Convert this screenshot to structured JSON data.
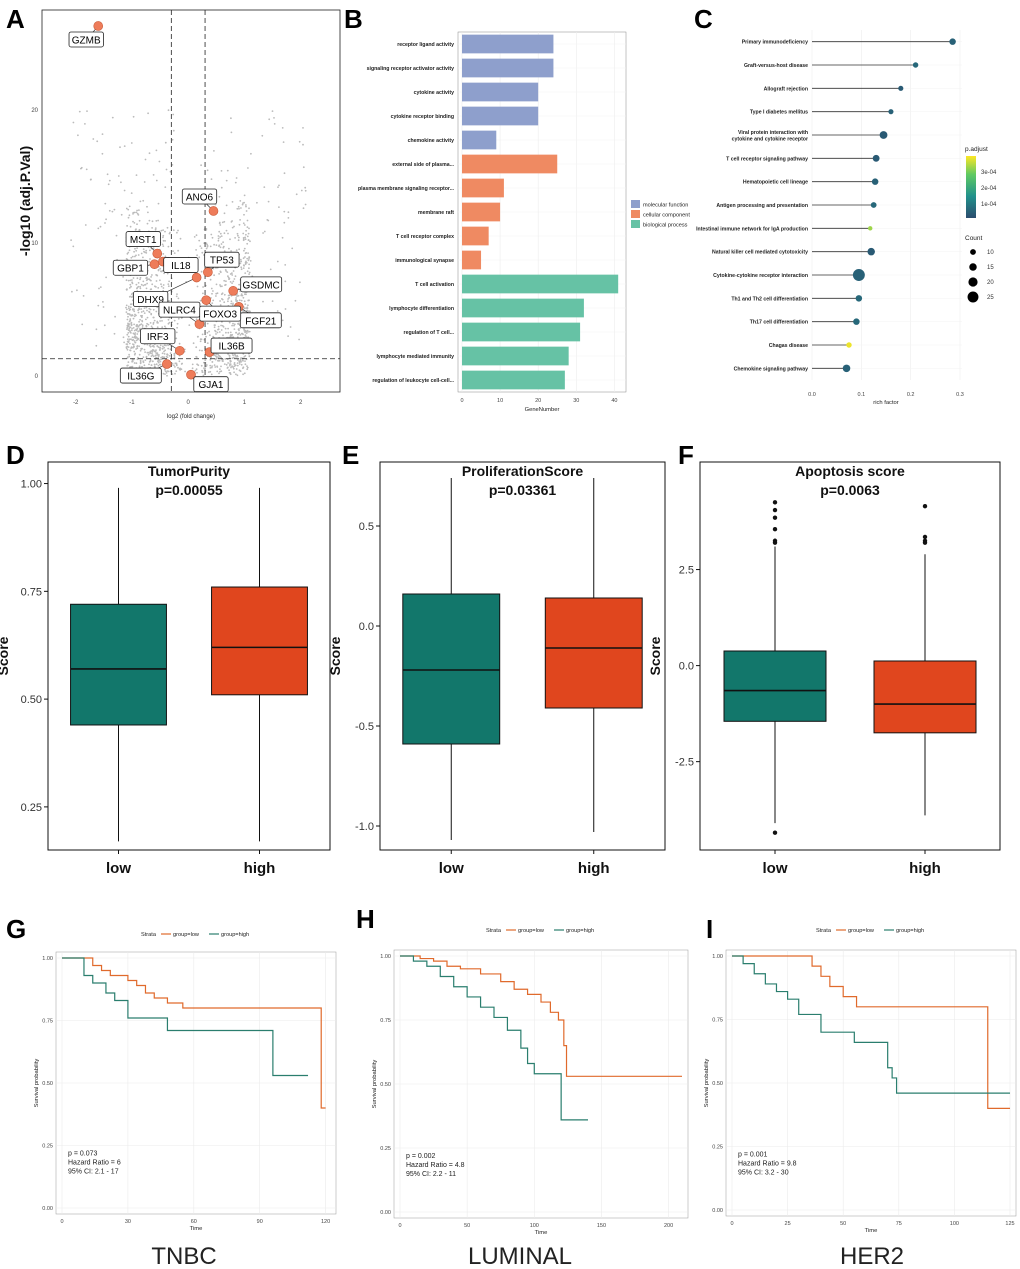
{
  "panel_letters": [
    "A",
    "B",
    "C",
    "D",
    "E",
    "F",
    "G",
    "H",
    "I"
  ],
  "colors": {
    "low": "#12776b",
    "high": "#e0461e",
    "km_low": "#e06a2c",
    "km_high": "#2a7e6e",
    "scatter": "#bbbbbb",
    "highlight": "#ee7c5a",
    "mf": "#8e9fcc",
    "cc": "#ef8a62",
    "bp": "#66c2a5"
  },
  "chart_data": [
    {
      "panel": "A",
      "type": "scatter",
      "title": "",
      "xlabel": "log2 (fold change)",
      "ylabel": "-log10 (adj.P.Val)",
      "xlim": [
        -2.6,
        2.7
      ],
      "ylim": [
        -1.2,
        27.5
      ],
      "xticks": [
        -2,
        -1,
        0,
        1,
        2
      ],
      "yticks": [
        0,
        10,
        20
      ],
      "thresholds": {
        "x": [
          -0.3,
          0.3
        ],
        "y": 1.3
      },
      "labeled_points": [
        {
          "label": "GZMB",
          "x": -1.6,
          "y": 26.3
        },
        {
          "label": "ANO6",
          "x": 0.45,
          "y": 12.4
        },
        {
          "label": "MST1",
          "x": -0.55,
          "y": 9.2
        },
        {
          "label": "GBP1",
          "x": -0.6,
          "y": 8.4
        },
        {
          "label": "IL18",
          "x": -0.45,
          "y": 8.6
        },
        {
          "label": "TP53",
          "x": 0.35,
          "y": 7.8
        },
        {
          "label": "DHX9",
          "x": 0.15,
          "y": 7.4
        },
        {
          "label": "GSDMC",
          "x": 0.8,
          "y": 6.4
        },
        {
          "label": "FGF21",
          "x": 0.9,
          "y": 5.2
        },
        {
          "label": "NLRC4",
          "x": 0.2,
          "y": 3.9
        },
        {
          "label": "FOXO3",
          "x": 0.32,
          "y": 5.7
        },
        {
          "label": "IRF3",
          "x": -0.15,
          "y": 1.9
        },
        {
          "label": "IL36B",
          "x": 0.38,
          "y": 1.8
        },
        {
          "label": "IL36G",
          "x": -0.38,
          "y": 0.9
        },
        {
          "label": "GJA1",
          "x": 0.05,
          "y": 0.1
        }
      ]
    },
    {
      "panel": "B",
      "type": "bar",
      "orientation": "horizontal",
      "xlabel": "GeneNumber",
      "ylabel": "",
      "xlim": [
        0,
        42
      ],
      "xticks": [
        0,
        10,
        20,
        30,
        40
      ],
      "categories": [
        "receptor ligand activity",
        "signaling receptor activator activity",
        "cytokine activity",
        "cytokine receptor binding",
        "chemokine activity",
        "external side of plasma...",
        "plasma membrane signaling receptor...",
        "membrane raft",
        "T cell receptor complex",
        "immunological synapse",
        "T cell activation",
        "lymphocyte differentiation",
        "regulation of T cell...",
        "lymphocyte mediated immunity",
        "regulation of leukocyte cell-cell..."
      ],
      "values": [
        24,
        24,
        20,
        20,
        9,
        25,
        11,
        10,
        7,
        5,
        41,
        32,
        31,
        28,
        27
      ],
      "groups": [
        "mf",
        "mf",
        "mf",
        "mf",
        "mf",
        "cc",
        "cc",
        "cc",
        "cc",
        "cc",
        "bp",
        "bp",
        "bp",
        "bp",
        "bp"
      ],
      "legend": [
        "molecular function",
        "cellular component",
        "biological process"
      ]
    },
    {
      "panel": "C",
      "type": "scatter",
      "subtype": "lollipop",
      "xlabel": "rich factor",
      "xlim": [
        0,
        0.3
      ],
      "xticks": [
        0.0,
        0.1,
        0.2,
        0.3
      ],
      "categories": [
        "Primary immunodeficiency",
        "Graft-versus-host disease",
        "Allograft rejection",
        "Type I diabetes mellitus",
        "Viral protein interaction with|cytokine and cytokine receptor",
        "T cell receptor signaling pathway",
        "Hematopoietic cell lineage",
        "Antigen processing and presentation",
        "Intestinal immune network for IgA production",
        "Natural killer cell mediated cytotoxicity",
        "Cytokine-cytokine receptor interaction",
        "Th1 and Th2 cell differentiation",
        "Th17 cell differentiation",
        "Chagas disease",
        "Chemokine signaling pathway"
      ],
      "values": [
        0.285,
        0.21,
        0.18,
        0.16,
        0.145,
        0.13,
        0.128,
        0.125,
        0.118,
        0.12,
        0.095,
        0.095,
        0.09,
        0.075,
        0.07
      ],
      "counts": [
        12,
        9,
        8,
        8,
        16,
        13,
        12,
        10,
        6,
        15,
        28,
        12,
        12,
        9,
        15
      ],
      "p_adjust": [
        9e-05,
        0.0001,
        8e-05,
        9e-05,
        8e-05,
        8e-05,
        9e-05,
        0.0001,
        0.0003,
        8e-05,
        9e-05,
        0.0001,
        0.0001,
        0.00035,
        9e-05
      ],
      "legend_p_title": "p.adjust",
      "legend_p_ticks": [
        "3e-04",
        "2e-04",
        "1e-04"
      ],
      "legend_count_title": "Count",
      "legend_count_ticks": [
        10,
        15,
        20,
        25
      ]
    },
    {
      "panel": "D",
      "type": "box",
      "title": "TumorPurity",
      "subtitle": "p=0.00055",
      "ylabel": "Score",
      "categories": [
        "low",
        "high"
      ],
      "ylim": [
        0.15,
        1.05
      ],
      "yticks": [
        "1.00",
        "0.75",
        "0.50",
        "0.25"
      ],
      "ytick_values": [
        1.0,
        0.75,
        0.5,
        0.25
      ],
      "boxes": [
        {
          "min": 0.17,
          "q1": 0.44,
          "median": 0.57,
          "q3": 0.72,
          "max": 0.99,
          "outliers": []
        },
        {
          "min": 0.17,
          "q1": 0.51,
          "median": 0.62,
          "q3": 0.76,
          "max": 0.99,
          "outliers": []
        }
      ]
    },
    {
      "panel": "E",
      "type": "box",
      "title": "ProliferationScore",
      "subtitle": "p=0.03361",
      "ylabel": "Score",
      "categories": [
        "low",
        "high"
      ],
      "ylim": [
        -1.12,
        0.82
      ],
      "yticks": [
        "0.5",
        "0.0",
        "-0.5",
        "-1.0"
      ],
      "ytick_values": [
        0.5,
        0.0,
        -0.5,
        -1.0
      ],
      "boxes": [
        {
          "min": -1.07,
          "q1": -0.59,
          "median": -0.22,
          "q3": 0.16,
          "max": 0.74,
          "outliers": []
        },
        {
          "min": -1.03,
          "q1": -0.41,
          "median": -0.11,
          "q3": 0.14,
          "max": 0.74,
          "outliers": []
        }
      ]
    },
    {
      "panel": "F",
      "type": "box",
      "title": "Apoptosis score",
      "subtitle": "p=0.0063",
      "ylabel": "Score",
      "categories": [
        "low",
        "high"
      ],
      "ylim": [
        -4.8,
        5.3
      ],
      "yticks": [
        "2.5",
        "0.0",
        "-2.5"
      ],
      "ytick_values": [
        2.5,
        0.0,
        -2.5
      ],
      "boxes": [
        {
          "min": -4.1,
          "q1": -1.45,
          "median": -0.65,
          "q3": 0.38,
          "max": 3.1,
          "outliers": [
            4.25,
            4.05,
            3.85,
            3.55,
            3.25,
            3.2,
            -4.35
          ]
        },
        {
          "min": -3.9,
          "q1": -1.75,
          "median": -1.0,
          "q3": 0.12,
          "max": 2.9,
          "outliers": [
            4.15,
            3.35,
            3.25,
            3.2
          ]
        }
      ]
    },
    {
      "panel": "G",
      "type": "line",
      "subtype": "kaplan-meier",
      "legend_title": "Strata",
      "legend": [
        "group=low",
        "group=high"
      ],
      "xlabel": "Time",
      "ylabel": "Survival probability",
      "xlim": [
        0,
        122
      ],
      "xticks": [
        0,
        30,
        60,
        90,
        120
      ],
      "ylim": [
        0,
        1
      ],
      "yticks": [
        "0.00",
        "0.25",
        "0.50",
        "0.75",
        "1.00"
      ],
      "ytick_values": [
        0,
        0.25,
        0.5,
        0.75,
        1.0
      ],
      "series": [
        {
          "name": "group=low",
          "x": [
            0,
            8,
            14,
            18,
            22,
            30,
            34,
            38,
            42,
            48,
            55,
            118,
            118,
            120
          ],
          "y": [
            1.0,
            1.0,
            0.97,
            0.95,
            0.93,
            0.91,
            0.89,
            0.86,
            0.84,
            0.82,
            0.8,
            0.8,
            0.4,
            0.4
          ]
        },
        {
          "name": "group=high",
          "x": [
            0,
            7,
            10,
            14,
            20,
            24,
            30,
            48,
            96,
            96,
            112
          ],
          "y": [
            1.0,
            1.0,
            0.93,
            0.9,
            0.86,
            0.83,
            0.76,
            0.71,
            0.71,
            0.53,
            0.53
          ]
        }
      ],
      "annotation": [
        "p = 0.073",
        "Hazard Ratio = 6",
        "95% CI: 2.1 - 17"
      ],
      "label": "TNBC"
    },
    {
      "panel": "H",
      "type": "line",
      "subtype": "kaplan-meier",
      "legend_title": "Strata",
      "legend": [
        "group=low",
        "group=high"
      ],
      "xlabel": "Time",
      "ylabel": "Survival probability",
      "xlim": [
        0,
        210
      ],
      "xticks": [
        0,
        50,
        100,
        150,
        200
      ],
      "ylim": [
        0,
        1
      ],
      "yticks": [
        "0.00",
        "0.25",
        "0.50",
        "0.75",
        "1.00"
      ],
      "ytick_values": [
        0,
        0.25,
        0.5,
        0.75,
        1.0
      ],
      "series": [
        {
          "name": "group=low",
          "x": [
            0,
            15,
            25,
            35,
            45,
            60,
            75,
            85,
            95,
            105,
            112,
            118,
            122,
            124,
            210
          ],
          "y": [
            1.0,
            0.99,
            0.98,
            0.96,
            0.95,
            0.93,
            0.9,
            0.87,
            0.85,
            0.82,
            0.78,
            0.75,
            0.65,
            0.53,
            0.53
          ]
        },
        {
          "name": "group=high",
          "x": [
            0,
            10,
            20,
            30,
            40,
            50,
            60,
            70,
            80,
            90,
            95,
            100,
            110,
            120,
            140
          ],
          "y": [
            1.0,
            0.98,
            0.96,
            0.92,
            0.88,
            0.84,
            0.8,
            0.76,
            0.71,
            0.64,
            0.58,
            0.54,
            0.54,
            0.36,
            0.36
          ]
        }
      ],
      "annotation": [
        "p = 0.002",
        "Hazard Ratio = 4.8",
        "95% CI: 2.2 - 11"
      ],
      "label": "LUMINAL"
    },
    {
      "panel": "I",
      "type": "line",
      "subtype": "kaplan-meier",
      "legend_title": "Strata",
      "legend": [
        "group=low",
        "group=high"
      ],
      "xlabel": "Time",
      "ylabel": "Survival probability",
      "xlim": [
        0,
        125
      ],
      "xticks": [
        0,
        25,
        50,
        75,
        100,
        125
      ],
      "ylim": [
        0,
        1
      ],
      "yticks": [
        "0.00",
        "0.25",
        "0.50",
        "0.75",
        "1.00"
      ],
      "ytick_values": [
        0,
        0.25,
        0.5,
        0.75,
        1.0
      ],
      "series": [
        {
          "name": "group=low",
          "x": [
            0,
            30,
            36,
            40,
            44,
            50,
            56,
            115,
            115,
            125
          ],
          "y": [
            1.0,
            1.0,
            0.96,
            0.92,
            0.88,
            0.84,
            0.8,
            0.8,
            0.4,
            0.4
          ]
        },
        {
          "name": "group=high",
          "x": [
            0,
            5,
            10,
            15,
            20,
            25,
            30,
            40,
            55,
            70,
            72,
            74,
            125
          ],
          "y": [
            1.0,
            0.97,
            0.93,
            0.89,
            0.86,
            0.83,
            0.77,
            0.7,
            0.66,
            0.56,
            0.52,
            0.46,
            0.46
          ]
        }
      ],
      "annotation": [
        "p = 0.001",
        "Hazard Ratio = 9.8",
        "95% CI: 3.2 - 30"
      ],
      "label": "HER2"
    }
  ]
}
